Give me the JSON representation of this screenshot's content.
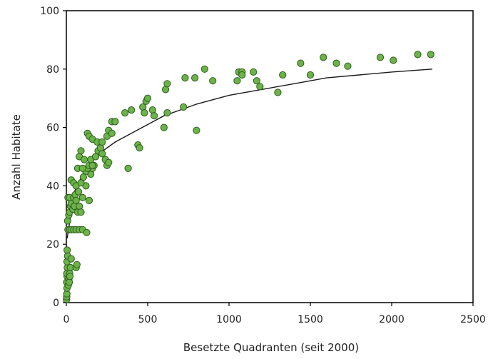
{
  "chart_data": {
    "type": "scatter",
    "title": "",
    "xlabel": "Besetzte Quadranten (seit 2000)",
    "ylabel": "Anzahl Habitate",
    "xlim": [
      0,
      2500
    ],
    "ylim": [
      0,
      100
    ],
    "x_ticks": [
      0,
      500,
      1000,
      1500,
      2000,
      2500
    ],
    "x_tick_labels": [
      "0",
      "500",
      "1000",
      "1500",
      "2000",
      "2500"
    ],
    "y_ticks": [
      0,
      20,
      40,
      60,
      80,
      100
    ],
    "y_tick_labels": [
      "0",
      "20",
      "40",
      "60",
      "80",
      "100"
    ],
    "grid": false,
    "legend": "none",
    "colors": {
      "point_fill": "#6bb34a",
      "point_stroke": "#2f5e1c",
      "trend": "#1a1a1a",
      "axis": "#000000"
    },
    "series": [
      {
        "points": [
          [
            1,
            1
          ],
          [
            2,
            2
          ],
          [
            3,
            3
          ],
          [
            4,
            5
          ],
          [
            2,
            7
          ],
          [
            5,
            9
          ],
          [
            3,
            10
          ],
          [
            6,
            12
          ],
          [
            4,
            14
          ],
          [
            8,
            16
          ],
          [
            5,
            18
          ],
          [
            12,
            6
          ],
          [
            15,
            8
          ],
          [
            18,
            7
          ],
          [
            20,
            10
          ],
          [
            25,
            12
          ],
          [
            30,
            15
          ],
          [
            22,
            9
          ],
          [
            60,
            12
          ],
          [
            65,
            13
          ],
          [
            10,
            25
          ],
          [
            20,
            25
          ],
          [
            30,
            25
          ],
          [
            45,
            25
          ],
          [
            60,
            25
          ],
          [
            80,
            25
          ],
          [
            100,
            25
          ],
          [
            125,
            24
          ],
          [
            8,
            28
          ],
          [
            15,
            30
          ],
          [
            20,
            31
          ],
          [
            25,
            33
          ],
          [
            30,
            34
          ],
          [
            10,
            36
          ],
          [
            20,
            36
          ],
          [
            40,
            32
          ],
          [
            45,
            36
          ],
          [
            50,
            33
          ],
          [
            55,
            37
          ],
          [
            60,
            35
          ],
          [
            70,
            31
          ],
          [
            80,
            33
          ],
          [
            90,
            31
          ],
          [
            100,
            36
          ],
          [
            120,
            40
          ],
          [
            140,
            35
          ],
          [
            150,
            44
          ],
          [
            160,
            46
          ],
          [
            170,
            47
          ],
          [
            30,
            42
          ],
          [
            45,
            41
          ],
          [
            60,
            40
          ],
          [
            75,
            38
          ],
          [
            90,
            41
          ],
          [
            105,
            43
          ],
          [
            120,
            45
          ],
          [
            130,
            46
          ],
          [
            140,
            47
          ],
          [
            150,
            49
          ],
          [
            160,
            47
          ],
          [
            180,
            50
          ],
          [
            195,
            52
          ],
          [
            210,
            53
          ],
          [
            220,
            51
          ],
          [
            240,
            49
          ],
          [
            250,
            47
          ],
          [
            260,
            48
          ],
          [
            70,
            46
          ],
          [
            80,
            50
          ],
          [
            90,
            52
          ],
          [
            100,
            46
          ],
          [
            110,
            49
          ],
          [
            130,
            58
          ],
          [
            140,
            57
          ],
          [
            160,
            56
          ],
          [
            190,
            55
          ],
          [
            220,
            55
          ],
          [
            250,
            57
          ],
          [
            260,
            59
          ],
          [
            280,
            62
          ],
          [
            300,
            62
          ],
          [
            280,
            58
          ],
          [
            360,
            65
          ],
          [
            400,
            66
          ],
          [
            440,
            54
          ],
          [
            450,
            53
          ],
          [
            380,
            46
          ],
          [
            470,
            67
          ],
          [
            480,
            65
          ],
          [
            490,
            69
          ],
          [
            500,
            70
          ],
          [
            530,
            66
          ],
          [
            540,
            64
          ],
          [
            600,
            60
          ],
          [
            620,
            65
          ],
          [
            610,
            73
          ],
          [
            620,
            75
          ],
          [
            720,
            67
          ],
          [
            730,
            77
          ],
          [
            790,
            77
          ],
          [
            800,
            59
          ],
          [
            850,
            80
          ],
          [
            900,
            76
          ],
          [
            1050,
            76
          ],
          [
            1060,
            79
          ],
          [
            1080,
            79
          ],
          [
            1080,
            78
          ],
          [
            1150,
            79
          ],
          [
            1170,
            76
          ],
          [
            1190,
            74
          ],
          [
            1300,
            72
          ],
          [
            1330,
            78
          ],
          [
            1440,
            82
          ],
          [
            1500,
            78
          ],
          [
            1580,
            84
          ],
          [
            1660,
            82
          ],
          [
            1730,
            81
          ],
          [
            1930,
            84
          ],
          [
            2010,
            83
          ],
          [
            2160,
            85
          ],
          [
            2240,
            85
          ]
        ]
      }
    ],
    "trend": {
      "x": [
        5,
        50,
        100,
        150,
        200,
        300,
        400,
        500,
        600,
        700,
        800,
        1000,
        1200,
        1400,
        1600,
        1800,
        2000,
        2250
      ],
      "y": [
        22,
        38,
        44,
        48,
        51,
        55,
        58,
        61,
        64,
        66,
        68,
        71,
        73,
        75,
        77,
        78,
        79,
        80
      ]
    }
  }
}
